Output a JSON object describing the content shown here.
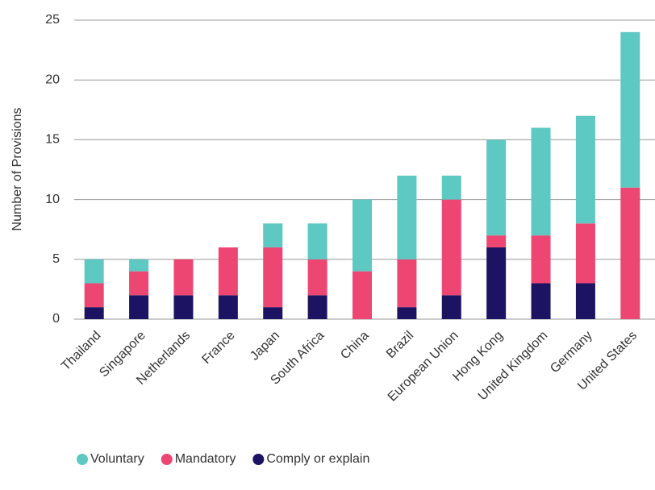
{
  "chart_data": {
    "type": "stacked_bar",
    "y_label": "Number of Provisions",
    "categories": [
      "Thailand",
      "Singapore",
      "Netherlands",
      "France",
      "Japan",
      "South Africa",
      "China",
      "Brazil",
      "European Union",
      "Hong Kong",
      "United Kingdom",
      "Germany",
      "United States"
    ],
    "series": [
      {
        "name": "Voluntary",
        "color": "#5ec8c2",
        "values": [
          2,
          1,
          0,
          0,
          2,
          3,
          6,
          7,
          2,
          8,
          9,
          9,
          13
        ]
      },
      {
        "name": "Mandatory",
        "color": "#ee4672",
        "values": [
          2,
          2,
          3,
          4,
          5,
          3,
          4,
          4,
          8,
          1,
          4,
          5,
          11
        ]
      },
      {
        "name": "Comply or explain",
        "color": "#1c1462",
        "values": [
          1,
          2,
          2,
          2,
          1,
          2,
          0,
          1,
          2,
          6,
          3,
          3,
          0
        ]
      }
    ],
    "ylim": [
      0,
      25
    ],
    "yticks": [
      0,
      5,
      10,
      15,
      20,
      25
    ],
    "grid": true,
    "legend": "bottom-left"
  }
}
